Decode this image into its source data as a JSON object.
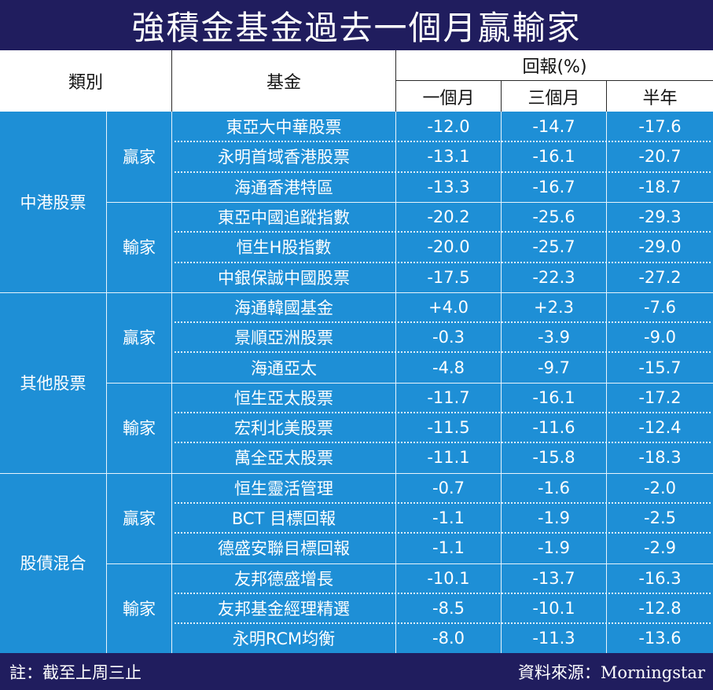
{
  "title": "強積金基金過去一個月贏輸家",
  "headers": {
    "category": "類別",
    "fund": "基金",
    "return_group": "回報(%)",
    "periods": [
      "一個月",
      "三個月",
      "半年"
    ]
  },
  "categories": [
    {
      "name": "中港股票",
      "groups": [
        {
          "label": "贏家",
          "rows": [
            {
              "fund": "東亞大中華股票",
              "m1": "-12.0",
              "m3": "-14.7",
              "m6": "-17.6"
            },
            {
              "fund": "永明首域香港股票",
              "m1": "-13.1",
              "m3": "-16.1",
              "m6": "-20.7"
            },
            {
              "fund": "海通香港特區",
              "m1": "-13.3",
              "m3": "-16.7",
              "m6": "-18.7"
            }
          ]
        },
        {
          "label": "輸家",
          "rows": [
            {
              "fund": "東亞中國追蹤指數",
              "m1": "-20.2",
              "m3": "-25.6",
              "m6": "-29.3"
            },
            {
              "fund": "恒生H股指數",
              "m1": "-20.0",
              "m3": "-25.7",
              "m6": "-29.0"
            },
            {
              "fund": "中銀保誠中國股票",
              "m1": "-17.5",
              "m3": "-22.3",
              "m6": "-27.2"
            }
          ]
        }
      ]
    },
    {
      "name": "其他股票",
      "groups": [
        {
          "label": "贏家",
          "rows": [
            {
              "fund": "海通韓國基金",
              "m1": "+4.0",
              "m3": "+2.3",
              "m6": "-7.6"
            },
            {
              "fund": "景順亞洲股票",
              "m1": "-0.3",
              "m3": "-3.9",
              "m6": "-9.0"
            },
            {
              "fund": "海通亞太",
              "m1": "-4.8",
              "m3": "-9.7",
              "m6": "-15.7"
            }
          ]
        },
        {
          "label": "輸家",
          "rows": [
            {
              "fund": "恒生亞太股票",
              "m1": "-11.7",
              "m3": "-16.1",
              "m6": "-17.2"
            },
            {
              "fund": "宏利北美股票",
              "m1": "-11.5",
              "m3": "-11.6",
              "m6": "-12.4"
            },
            {
              "fund": "萬全亞太股票",
              "m1": "-11.1",
              "m3": "-15.8",
              "m6": "-18.3"
            }
          ]
        }
      ]
    },
    {
      "name": "股債混合",
      "groups": [
        {
          "label": "贏家",
          "rows": [
            {
              "fund": "恒生靈活管理",
              "m1": "-0.7",
              "m3": "-1.6",
              "m6": "-2.0"
            },
            {
              "fund": "BCT 目標回報",
              "m1": "-1.1",
              "m3": "-1.9",
              "m6": "-2.5"
            },
            {
              "fund": "德盛安聯目標回報",
              "m1": "-1.1",
              "m3": "-1.9",
              "m6": "-2.9"
            }
          ]
        },
        {
          "label": "輸家",
          "rows": [
            {
              "fund": "友邦德盛增長",
              "m1": "-10.1",
              "m3": "-13.7",
              "m6": "-16.3"
            },
            {
              "fund": "友邦基金經理精選",
              "m1": "-8.5",
              "m3": "-10.1",
              "m6": "-12.8"
            },
            {
              "fund": "永明RCM均衡",
              "m1": "-8.0",
              "m3": "-11.3",
              "m6": "-13.6"
            }
          ]
        }
      ]
    }
  ],
  "footer": {
    "note": "註：截至上周三止",
    "source": "資料來源：Morningstar"
  },
  "colors": {
    "title_bg": "#201d5e",
    "body_bg": "#1e8fd6",
    "header_bg": "#ffffff"
  }
}
